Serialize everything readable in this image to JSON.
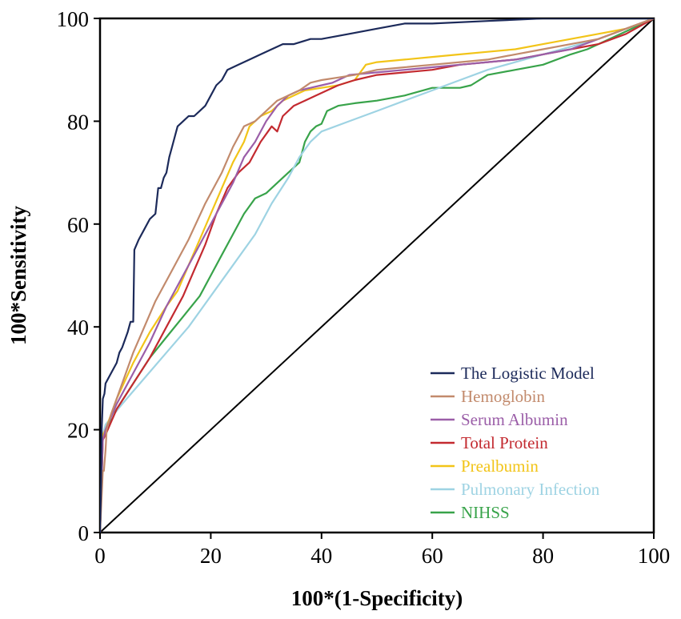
{
  "chart_data": {
    "type": "line",
    "title": "",
    "xlabel": "100*(1-Specificity)",
    "ylabel": "100*Sensitivity",
    "xlim": [
      0,
      100
    ],
    "ylim": [
      0,
      100
    ],
    "xticks": [
      0,
      20,
      40,
      60,
      80,
      100
    ],
    "yticks": [
      0,
      20,
      40,
      60,
      80,
      100
    ],
    "grid": false,
    "legend_position": "bottom-right",
    "reference_line": {
      "x": [
        0,
        100
      ],
      "y": [
        0,
        100
      ],
      "color": "#000000"
    },
    "series": [
      {
        "name": "The Logistic Model",
        "color": "#1c2a5a",
        "x": [
          0,
          0.2,
          0.3,
          0.5,
          0.8,
          1,
          2,
          3,
          3.5,
          4,
          5,
          5.5,
          6,
          6.2,
          7,
          8,
          9,
          10,
          10.5,
          11,
          11.5,
          12,
          12.5,
          13,
          14,
          15,
          16,
          17,
          18,
          19,
          20,
          21,
          22,
          23,
          25,
          27,
          29,
          31,
          33,
          35,
          38,
          40,
          45,
          50,
          55,
          60,
          70,
          80,
          90,
          100
        ],
        "y": [
          0,
          10,
          20,
          26,
          27,
          29,
          31,
          33,
          35,
          36,
          39,
          41,
          41,
          55,
          57,
          59,
          61,
          62,
          67,
          67,
          69,
          70,
          73,
          75,
          79,
          80,
          81,
          81,
          82,
          83,
          85,
          87,
          88,
          90,
          91,
          92,
          93,
          94,
          95,
          95,
          96,
          96,
          97,
          98,
          99,
          99,
          99.5,
          100,
          100,
          100
        ]
      },
      {
        "name": "Hemoglobin",
        "color": "#c28a6c",
        "x": [
          0,
          0.5,
          0.7,
          1,
          1.2,
          2,
          4,
          6,
          8,
          10,
          13,
          16,
          19,
          22,
          24,
          26,
          28,
          30,
          32,
          34,
          36,
          38,
          40,
          43,
          46,
          50,
          55,
          60,
          65,
          70,
          75,
          80,
          85,
          90,
          95,
          100
        ],
        "y": [
          0,
          12,
          12,
          16,
          20,
          23,
          29,
          35,
          40,
          45,
          51,
          57,
          64,
          70,
          75,
          79,
          80,
          82,
          84,
          85,
          86,
          87.5,
          88,
          88.5,
          89,
          90,
          90.5,
          91,
          91.5,
          92,
          93,
          94,
          95,
          96,
          98,
          100
        ]
      },
      {
        "name": "Serum Albumin",
        "color": "#9b5ea8",
        "x": [
          0,
          0.5,
          1,
          3,
          6,
          9,
          12,
          15,
          18,
          21,
          24,
          26,
          28,
          30,
          32,
          34,
          36,
          38,
          40,
          42,
          45,
          50,
          55,
          60,
          65,
          70,
          75,
          80,
          85,
          90,
          95,
          100
        ],
        "y": [
          0,
          18,
          20,
          25,
          31,
          37,
          44,
          50,
          56,
          62,
          68,
          73,
          76,
          80,
          83,
          85,
          86,
          86.5,
          87,
          87.5,
          89,
          89.5,
          90,
          90.5,
          91,
          91.5,
          92,
          93,
          94,
          96,
          98,
          100
        ]
      },
      {
        "name": "Total Protein",
        "color": "#c32a30",
        "x": [
          0,
          0.5,
          1,
          3,
          6,
          9,
          12,
          15,
          17,
          19,
          21,
          23,
          25,
          27,
          29,
          31,
          32,
          33,
          35,
          37,
          39,
          41,
          43,
          46,
          50,
          55,
          60,
          65,
          70,
          75,
          80,
          85,
          90,
          95,
          100
        ],
        "y": [
          0,
          18,
          19,
          24,
          29,
          34,
          40,
          46,
          51,
          56,
          62,
          67,
          70,
          72,
          76,
          79,
          78,
          81,
          83,
          84,
          85,
          86,
          87,
          88,
          89,
          89.5,
          90,
          91,
          91.5,
          92,
          93,
          94,
          95,
          97,
          100
        ]
      },
      {
        "name": "Prealbumin",
        "color": "#f2c418",
        "x": [
          0,
          0.5,
          1,
          3,
          6,
          9,
          12,
          14,
          16,
          18,
          20,
          22,
          24,
          26,
          27,
          29,
          31,
          33,
          35,
          37,
          40,
          43,
          46,
          48,
          50,
          55,
          60,
          65,
          70,
          75,
          80,
          85,
          90,
          95,
          100
        ],
        "y": [
          0,
          19,
          20,
          26,
          33,
          39,
          44,
          47,
          52,
          57,
          62,
          67,
          72,
          76,
          79,
          81,
          82,
          84,
          85,
          86,
          86.5,
          87,
          88,
          91,
          91.5,
          92,
          92.5,
          93,
          93.5,
          94,
          95,
          96,
          97,
          98,
          100
        ]
      },
      {
        "name": "Pulmonary Infection",
        "color": "#9ed3e3",
        "x": [
          0,
          0.5,
          1,
          4,
          8,
          12,
          16,
          20,
          24,
          28,
          31,
          34,
          36,
          38,
          40,
          45,
          50,
          55,
          60,
          65,
          70,
          75,
          80,
          85,
          90,
          95,
          100
        ],
        "y": [
          0,
          19,
          21,
          25,
          30,
          35,
          40,
          46,
          52,
          58,
          64,
          69,
          73,
          76,
          78,
          80,
          82,
          84,
          86,
          88,
          90,
          91.5,
          93,
          94.5,
          96,
          98,
          100
        ]
      },
      {
        "name": "NIHSS",
        "color": "#38a34a",
        "x": [
          0,
          0.5,
          1,
          3,
          6,
          9,
          12,
          15,
          18,
          20,
          22,
          24,
          26,
          28,
          30,
          32,
          34,
          36,
          37,
          38,
          39,
          40,
          41,
          43,
          46,
          50,
          55,
          60,
          65,
          67,
          70,
          75,
          80,
          85,
          88,
          90,
          95,
          100
        ],
        "y": [
          0,
          19,
          20,
          24,
          29,
          34,
          38,
          42,
          46,
          50,
          54,
          58,
          62,
          65,
          66,
          68,
          70,
          72,
          76,
          78,
          79,
          79.5,
          82,
          83,
          83.5,
          84,
          85,
          86.5,
          86.5,
          87,
          89,
          90,
          91,
          93,
          94,
          95,
          97.5,
          100
        ]
      }
    ]
  }
}
